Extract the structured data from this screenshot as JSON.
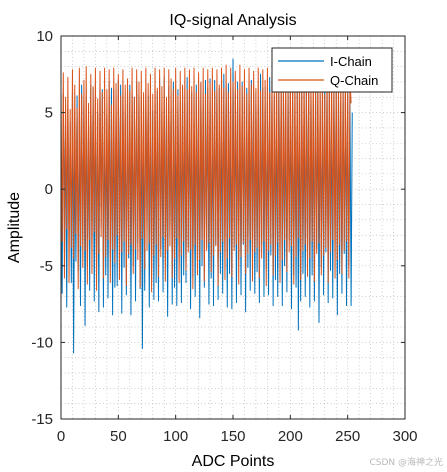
{
  "chart_data": {
    "type": "line",
    "title": "IQ-signal Analysis",
    "xlabel": "ADC Points",
    "ylabel": "Amplitude",
    "xlim": [
      0,
      300
    ],
    "ylim": [
      -15,
      10
    ],
    "xticks": [
      0,
      50,
      100,
      150,
      200,
      250,
      300
    ],
    "yticks": [
      -15,
      -10,
      -5,
      0,
      5,
      10
    ],
    "grid": "minor-dotted",
    "legend_position": "top-right",
    "series": [
      {
        "name": "I-Chain",
        "color": "#0072BD",
        "x_start": 0,
        "x_step": 1,
        "values": [
          0.5,
          -6.8,
          6.2,
          -1.8,
          3.9,
          -7.7,
          5.6,
          -3.2,
          4.4,
          -6.1,
          6.4,
          -10.7,
          2.5,
          -4.7,
          6.1,
          -5.3,
          4.7,
          -7.6,
          6.8,
          -2.9,
          5.8,
          -8.9,
          6.0,
          -4.8,
          4.2,
          -6.6,
          6.8,
          -3.6,
          6.6,
          -7.3,
          5.9,
          -5.1,
          5.0,
          -8.0,
          6.8,
          -2.5,
          6.5,
          -7.7,
          5.6,
          -5.6,
          4.9,
          -7.1,
          7.0,
          -4.2,
          6.6,
          -8.2,
          6.5,
          -6.4,
          5.1,
          -6.3,
          7.1,
          -3.6,
          6.8,
          -8.1,
          6.2,
          -5.1,
          4.9,
          -6.9,
          6.8,
          -4.5,
          6.8,
          -8.2,
          6.3,
          -5.0,
          6.0,
          -7.3,
          7.0,
          -3.5,
          6.4,
          -6.5,
          6.0,
          -10.4,
          5.3,
          -6.6,
          6.5,
          -2.6,
          6.1,
          -7.7,
          6.5,
          -4.5,
          5.1,
          -7.2,
          5.7,
          -6.1,
          6.4,
          -7.3,
          7.2,
          -3.9,
          5.0,
          -6.7,
          7.3,
          -4.5,
          5.8,
          -8.3,
          6.7,
          -3.1,
          5.2,
          -7.5,
          7.0,
          -6.4,
          5.6,
          -7.6,
          6.5,
          -4.8,
          5.7,
          -7.4,
          6.7,
          -5.6,
          5.7,
          -6.1,
          7.3,
          -3.8,
          6.5,
          -7.8,
          6.3,
          -5.7,
          4.8,
          -7.0,
          6.8,
          -4.6,
          6.0,
          -8.4,
          6.9,
          -5.0,
          5.4,
          -6.4,
          7.1,
          -3.8,
          6.6,
          -7.5,
          7.2,
          -5.8,
          5.0,
          -7.6,
          7.1,
          -3.6,
          6.5,
          -7.2,
          6.6,
          -5.5,
          5.5,
          -6.8,
          7.5,
          -4.1,
          6.8,
          -7.7,
          6.9,
          -5.5,
          5.4,
          -7.8,
          8.5,
          -3.8,
          6.3,
          -7.4,
          7.0,
          -4.6,
          5.2,
          -6.9,
          7.0,
          -3.6,
          6.0,
          -8.0,
          6.6,
          -5.1,
          5.6,
          -6.6,
          7.1,
          -4.1,
          6.3,
          -6.8,
          6.4,
          -5.4,
          5.3,
          -7.4,
          7.5,
          -3.6,
          6.6,
          -7.0,
          6.7,
          -5.2,
          5.7,
          -6.9,
          7.3,
          -4.3,
          6.4,
          -7.6,
          6.1,
          -5.9,
          5.8,
          -7.0,
          7.6,
          -3.9,
          6.4,
          -7.6,
          6.8,
          -5.0,
          5.1,
          -6.7,
          7.2,
          -3.3,
          6.3,
          -7.8,
          6.5,
          -5.6,
          5.3,
          -6.4,
          7.3,
          -9.2,
          6.4,
          -7.3,
          7.0,
          -5.5,
          5.3,
          -7.0,
          7.3,
          -4.4,
          6.6,
          -7.7,
          6.7,
          -5.6,
          5.5,
          -7.3,
          7.0,
          -3.9,
          6.4,
          -8.7,
          6.2,
          -5.1,
          5.8,
          -6.9,
          7.4,
          -4.1,
          6.5,
          -7.4,
          6.8,
          -5.3,
          5.1,
          -7.1,
          7.3,
          -3.6,
          6.4,
          -8.2,
          6.9,
          -5.5,
          5.6,
          -6.8,
          7.1,
          -4.2,
          6.2,
          -7.6,
          6.7,
          -5.0,
          5.9,
          -7.6,
          5.0
        ]
      },
      {
        "name": "Q-Chain",
        "color": "#D95319",
        "x_start": 0,
        "x_step": 1,
        "values": [
          6.5,
          -3.4,
          7.6,
          -5.8,
          6.0,
          -2.6,
          7.3,
          -6.1,
          5.2,
          -3.8,
          7.8,
          -4.5,
          6.8,
          -2.9,
          5.3,
          -6.5,
          7.9,
          -3.7,
          6.2,
          -5.1,
          7.1,
          -4.0,
          8.0,
          -6.2,
          5.6,
          -3.3,
          7.5,
          -5.5,
          6.7,
          -2.8,
          7.9,
          -6.6,
          5.9,
          -4.2,
          7.7,
          -3.1,
          6.3,
          -5.8,
          7.9,
          -4.4,
          6.5,
          -3.3,
          7.8,
          -6.1,
          5.5,
          -3.9,
          7.9,
          -4.8,
          6.9,
          -3.0,
          7.5,
          -5.9,
          6.1,
          -4.1,
          7.8,
          -3.4,
          6.8,
          -6.3,
          7.2,
          -4.2,
          6.4,
          -3.6,
          7.9,
          -5.5,
          6.0,
          -3.9,
          7.8,
          -4.6,
          7.0,
          -6.4,
          7.7,
          -3.2,
          6.3,
          -5.2,
          7.9,
          -4.0,
          6.9,
          -3.5,
          7.5,
          -6.7,
          6.2,
          -4.3,
          7.9,
          -3.6,
          6.6,
          -5.7,
          7.8,
          -4.4,
          6.7,
          -3.1,
          7.9,
          -6.0,
          6.0,
          -4.0,
          7.8,
          -3.7,
          7.2,
          -5.8,
          6.5,
          -4.5,
          7.9,
          -3.2,
          6.1,
          -6.1,
          7.7,
          -4.3,
          6.8,
          -3.4,
          7.9,
          -5.3,
          6.5,
          -4.1,
          7.8,
          -3.9,
          6.7,
          -6.5,
          7.9,
          -3.6,
          6.3,
          -5.6,
          7.6,
          -4.6,
          7.0,
          -3.3,
          7.9,
          -6.0,
          6.2,
          -4.0,
          7.8,
          -3.5,
          6.9,
          -5.4,
          7.9,
          -4.3,
          6.4,
          -3.7,
          7.8,
          -6.3,
          6.8,
          -4.1,
          7.9,
          -3.4,
          6.6,
          -5.9,
          8.1,
          -4.5,
          6.3,
          -3.2,
          7.9,
          -5.7,
          7.0,
          -4.0,
          7.7,
          -3.6,
          6.5,
          -6.2,
          8.1,
          -4.4,
          6.7,
          -3.5,
          7.8,
          -5.5,
          6.2,
          -4.2,
          7.9,
          -3.3,
          6.8,
          -6.0,
          7.7,
          -4.1,
          6.6,
          -3.8,
          7.9,
          -5.8,
          6.4,
          -4.5,
          7.8,
          -3.4,
          7.1,
          -6.3,
          7.9,
          -4.0,
          6.3,
          -3.6,
          7.7,
          -5.6,
          6.9,
          -4.3,
          7.9,
          -3.5,
          6.5,
          -6.1,
          7.8,
          -4.6,
          6.7,
          -3.3,
          7.9,
          -5.4,
          6.3,
          -4.1,
          7.8,
          -3.7,
          7.0,
          -6.2,
          7.9,
          -4.4,
          6.6,
          -3.2,
          7.7,
          -5.9,
          6.8,
          -4.0,
          7.9,
          -3.6,
          6.4,
          -5.7,
          7.8,
          -4.5,
          6.9,
          -3.4,
          7.9,
          -6.0,
          6.5,
          -4.2,
          7.7,
          -3.5,
          6.7,
          -5.6,
          7.9,
          -4.3,
          6.2,
          -3.8,
          7.8,
          -6.1,
          7.0,
          -4.1,
          7.9,
          -3.3,
          6.6,
          -5.8,
          7.7,
          -4.6,
          6.5,
          -3.6,
          7.8,
          -5.5,
          6.8,
          -4.0,
          7.9,
          -3.4,
          6.4,
          -5.8,
          7.2,
          5.6
        ]
      }
    ]
  },
  "watermark": "CSDN @海神之光",
  "colors": {
    "axes": "#262626",
    "grid": "#b0b0b0",
    "background": "#ffffff"
  }
}
